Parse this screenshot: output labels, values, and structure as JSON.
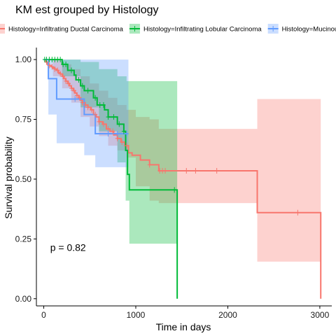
{
  "chart_data": {
    "type": "line",
    "title": "KM est grouped by Histology",
    "xlabel": "Time in days",
    "ylabel": "Survival probability",
    "xlim": [
      -80,
      3130
    ],
    "ylim": [
      -0.03,
      1.05
    ],
    "x_ticks": [
      0,
      1000,
      2000,
      3000
    ],
    "x_tick_labels": [
      "0",
      "1000",
      "2000",
      "3000"
    ],
    "y_ticks": [
      0,
      0.25,
      0.5,
      0.75,
      1.0
    ],
    "y_tick_labels": [
      "0.00",
      "0.25",
      "0.50",
      "0.75",
      "1.00"
    ],
    "grid": false,
    "legend_position": "top",
    "annotation": "p = 0.82",
    "annotation_pos": [
      70,
      0.2
    ],
    "series": [
      {
        "name": "Histology=Infiltrating Ductal Carcinoma",
        "color": "#F8766D",
        "fill": "#F8766D",
        "steps": [
          [
            0,
            1.0
          ],
          [
            20,
            0.99
          ],
          [
            40,
            0.98
          ],
          [
            60,
            0.975
          ],
          [
            80,
            0.97
          ],
          [
            100,
            0.965
          ],
          [
            120,
            0.96
          ],
          [
            140,
            0.955
          ],
          [
            160,
            0.945
          ],
          [
            180,
            0.94
          ],
          [
            200,
            0.93
          ],
          [
            220,
            0.92
          ],
          [
            240,
            0.91
          ],
          [
            260,
            0.9
          ],
          [
            280,
            0.89
          ],
          [
            300,
            0.88
          ],
          [
            320,
            0.87
          ],
          [
            340,
            0.86
          ],
          [
            360,
            0.85
          ],
          [
            380,
            0.84
          ],
          [
            400,
            0.83
          ],
          [
            420,
            0.82
          ],
          [
            450,
            0.81
          ],
          [
            480,
            0.8
          ],
          [
            510,
            0.79
          ],
          [
            540,
            0.77
          ],
          [
            570,
            0.76
          ],
          [
            600,
            0.74
          ],
          [
            640,
            0.73
          ],
          [
            680,
            0.71
          ],
          [
            720,
            0.7
          ],
          [
            760,
            0.685
          ],
          [
            800,
            0.67
          ],
          [
            840,
            0.655
          ],
          [
            880,
            0.64
          ],
          [
            920,
            0.61
          ],
          [
            960,
            0.6
          ],
          [
            1050,
            0.58
          ],
          [
            1150,
            0.56
          ],
          [
            1250,
            0.535
          ],
          [
            2320,
            0.36
          ],
          [
            3010,
            0.0
          ]
        ],
        "end": 3010,
        "ci_upper": [
          [
            0,
            1.0
          ],
          [
            100,
            1.0
          ],
          [
            200,
            0.98
          ],
          [
            300,
            0.96
          ],
          [
            400,
            0.93
          ],
          [
            500,
            0.9
          ],
          [
            600,
            0.87
          ],
          [
            700,
            0.84
          ],
          [
            800,
            0.81
          ],
          [
            900,
            0.79
          ],
          [
            1000,
            0.76
          ],
          [
            1150,
            0.75
          ],
          [
            1250,
            0.71
          ],
          [
            2320,
            0.835
          ],
          [
            3010,
            0.835
          ]
        ],
        "ci_lower": [
          [
            0,
            1.0
          ],
          [
            100,
            0.93
          ],
          [
            200,
            0.88
          ],
          [
            300,
            0.82
          ],
          [
            400,
            0.76
          ],
          [
            500,
            0.72
          ],
          [
            600,
            0.68
          ],
          [
            700,
            0.64
          ],
          [
            800,
            0.62
          ],
          [
            900,
            0.59
          ],
          [
            1000,
            0.47
          ],
          [
            1150,
            0.41
          ],
          [
            1250,
            0.4
          ],
          [
            2320,
            0.155
          ],
          [
            3010,
            0.155
          ]
        ],
        "censor_x": [
          30,
          60,
          90,
          120,
          150,
          180,
          210,
          240,
          270,
          300,
          330,
          360,
          390,
          420,
          450,
          480,
          520,
          560,
          600,
          650,
          700,
          750,
          800,
          850,
          900,
          1150,
          1260,
          1290,
          1320,
          1550,
          1650,
          1880,
          2760
        ]
      },
      {
        "name": "Histology=Infiltrating Lobular Carcinoma",
        "color": "#00BA38",
        "fill": "#00BA38",
        "steps": [
          [
            0,
            1.0
          ],
          [
            200,
            0.98
          ],
          [
            260,
            0.955
          ],
          [
            330,
            0.935
          ],
          [
            350,
            0.915
          ],
          [
            400,
            0.89
          ],
          [
            440,
            0.87
          ],
          [
            540,
            0.84
          ],
          [
            580,
            0.81
          ],
          [
            660,
            0.79
          ],
          [
            700,
            0.76
          ],
          [
            800,
            0.73
          ],
          [
            870,
            0.7
          ],
          [
            890,
            0.62
          ],
          [
            910,
            0.52
          ],
          [
            930,
            0.455
          ],
          [
            1450,
            0.0
          ]
        ],
        "end": 1450,
        "ci_upper": [
          [
            0,
            1.0
          ],
          [
            200,
            1.0
          ],
          [
            400,
            0.99
          ],
          [
            600,
            0.96
          ],
          [
            800,
            0.93
          ],
          [
            900,
            0.91
          ],
          [
            1450,
            0.91
          ]
        ],
        "ci_lower": [
          [
            0,
            1.0
          ],
          [
            200,
            0.93
          ],
          [
            400,
            0.8
          ],
          [
            600,
            0.7
          ],
          [
            800,
            0.57
          ],
          [
            890,
            0.41
          ],
          [
            930,
            0.23
          ],
          [
            1450,
            0.23
          ]
        ],
        "censor_x": [
          10,
          30,
          60,
          90,
          120,
          150,
          180,
          210,
          240,
          300,
          380,
          420,
          480,
          560,
          610,
          650,
          700,
          760,
          820,
          870,
          1420
        ]
      },
      {
        "name": "Histology=Mucinous Carcinoma",
        "color": "#619CFF",
        "fill": "#619CFF",
        "steps": [
          [
            0,
            1.0
          ],
          [
            50,
            0.92
          ],
          [
            140,
            0.835
          ],
          [
            440,
            0.77
          ],
          [
            560,
            0.69
          ],
          [
            920,
            0.69
          ]
        ],
        "end": 920,
        "ci_upper": [
          [
            0,
            1.0
          ],
          [
            920,
            1.0
          ]
        ],
        "ci_lower": [
          [
            0,
            1.0
          ],
          [
            50,
            0.77
          ],
          [
            140,
            0.65
          ],
          [
            440,
            0.6
          ],
          [
            560,
            0.55
          ],
          [
            920,
            0.55
          ]
        ],
        "censor_x": [
          340,
          700,
          800,
          900
        ]
      }
    ]
  }
}
